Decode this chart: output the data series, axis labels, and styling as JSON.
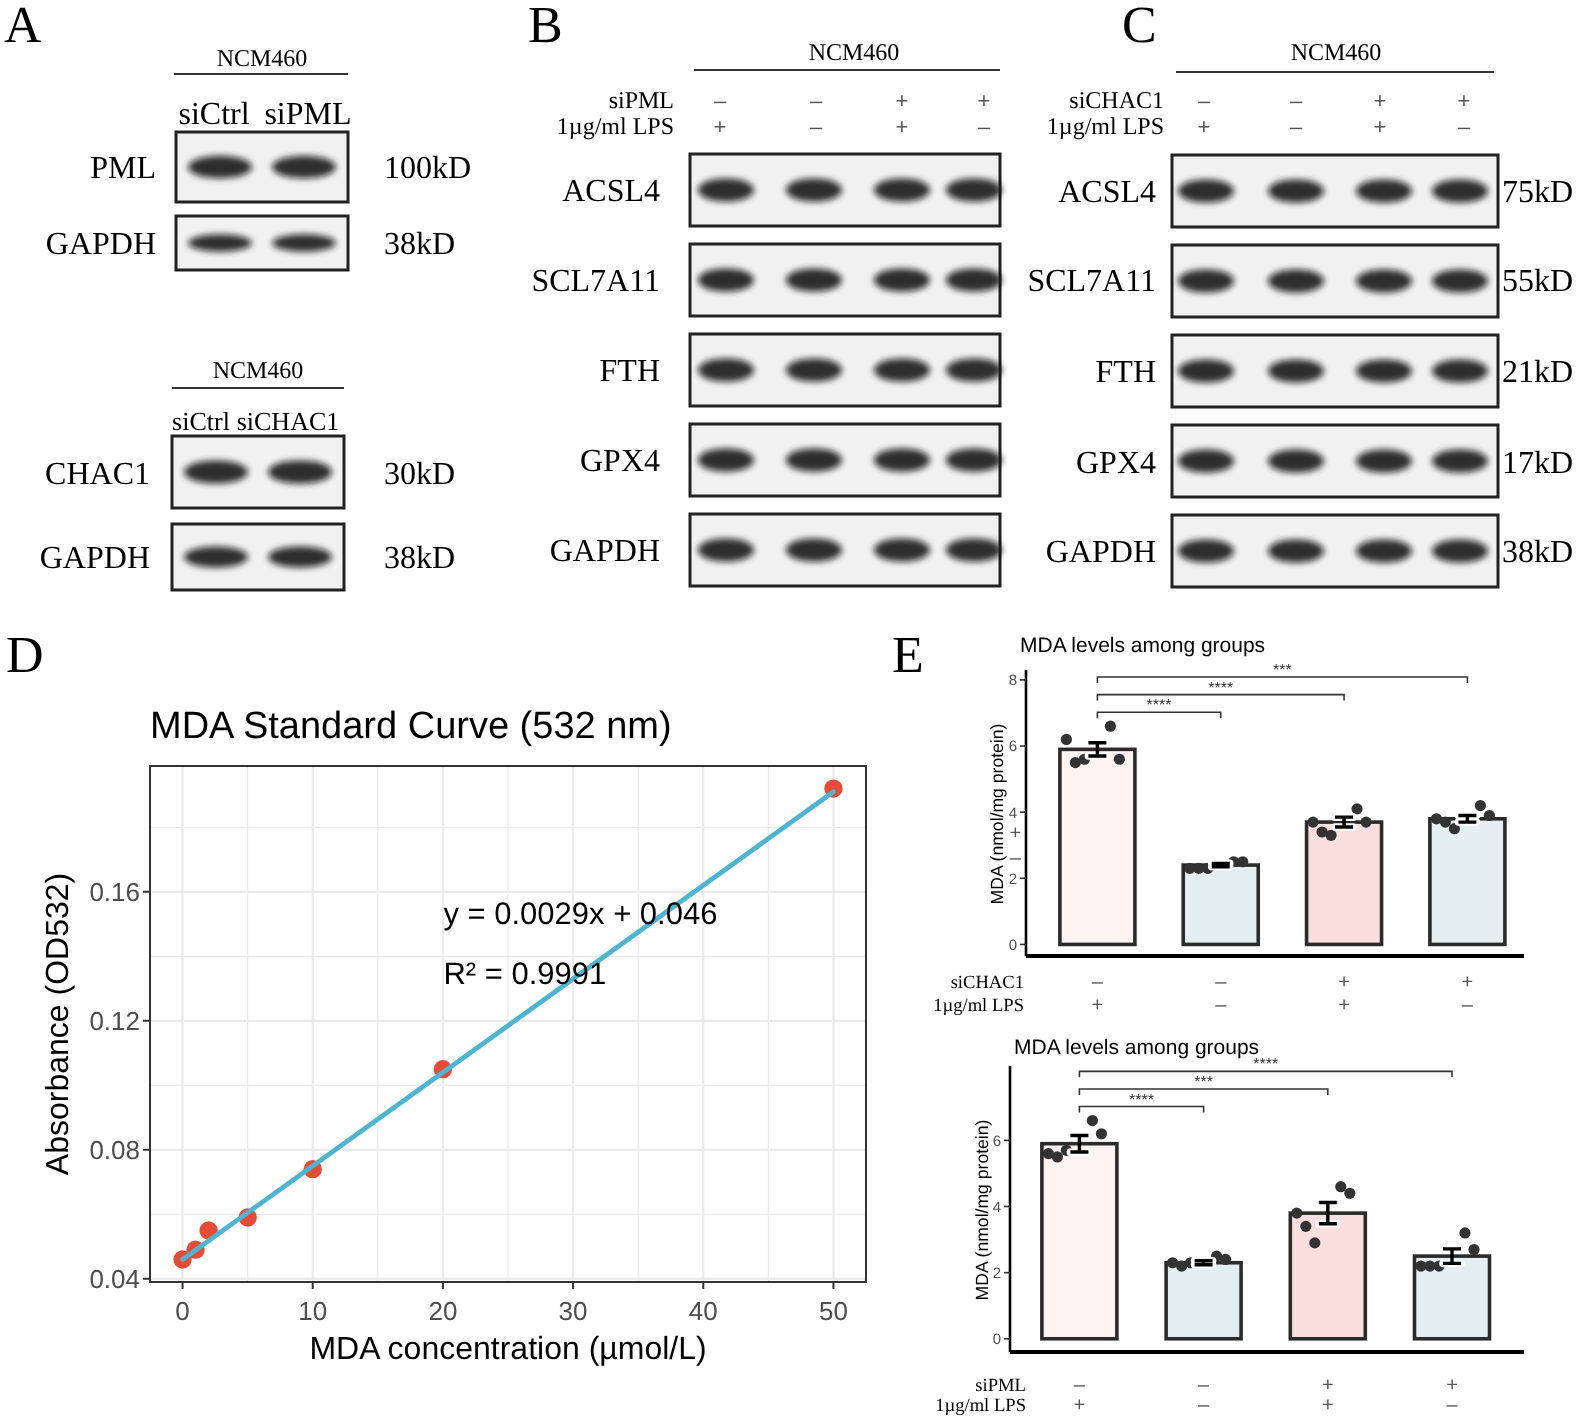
{
  "chart_data": [
    {
      "type": "other",
      "title": "NCM460",
      "annotations": [
        "A",
        "siCtrl",
        "siPML",
        "PML",
        "GAPDH",
        "100kD",
        "38kD"
      ]
    },
    {
      "type": "other",
      "title": "NCM460",
      "annotations": [
        "siCtrl",
        "siCHAC1",
        "CHAC1",
        "GAPDH",
        "30kD",
        "38kD"
      ]
    },
    {
      "type": "other",
      "title": "NCM460",
      "annotations": [
        "B",
        "siPML",
        "1µg/ml LPS",
        "–",
        "–",
        "+",
        "+",
        "+",
        "–",
        "+",
        "–",
        "ACSL4",
        "SCL7A11",
        "FTH",
        "GPX4",
        "GAPDH"
      ]
    },
    {
      "type": "other",
      "title": "NCM460",
      "annotations": [
        "C",
        "siCHAC1",
        "1µg/ml LPS",
        "–",
        "–",
        "+",
        "+",
        "+",
        "–",
        "+",
        "–",
        "ACSL4",
        "SCL7A11",
        "FTH",
        "GPX4",
        "GAPDH",
        "75kD",
        "55kD",
        "21kD",
        "17kD",
        "38kD"
      ]
    },
    {
      "type": "scatter",
      "title": "MDA Standard Curve (532 nm)",
      "xlabel": "MDA concentration (µmol/L)",
      "ylabel": "Absorbance (OD532)",
      "series": [
        {
          "type": "scatter",
          "color": "#e64b35",
          "marker": "circle",
          "x": [
            0,
            1,
            2,
            5,
            10,
            20,
            50
          ],
          "values": [
            0.046,
            0.049,
            0.055,
            0.059,
            0.074,
            0.105,
            0.192
          ]
        },
        {
          "type": "line",
          "color": "#4bb5d2",
          "marker": "none",
          "x": [
            0,
            50
          ],
          "values": [
            0.046,
            0.191
          ]
        }
      ],
      "xlim": [
        -2.5,
        52.5
      ],
      "ylim": [
        0.039,
        0.199
      ],
      "xticks": [
        0,
        {
          "value": 5,
          "label": null
        },
        10,
        {
          "value": 15,
          "label": null
        },
        20,
        {
          "value": 25,
          "label": null
        },
        30,
        {
          "value": 35,
          "label": null
        },
        40,
        {
          "value": 45,
          "label": null
        },
        50
      ],
      "yticks": [
        0.04,
        {
          "value": 0.06,
          "label": null
        },
        0.08,
        {
          "value": 0.1,
          "label": null
        },
        0.12,
        {
          "value": 0.14,
          "label": null
        },
        0.16,
        {
          "value": 0.18,
          "label": null
        }
      ],
      "grid": true,
      "annotations": [
        "D",
        "y = 0.0029x + 0.046",
        "R² = 0.9991"
      ]
    },
    {
      "type": "bar",
      "title": "MDA levels among groups",
      "ylabel": "MDA (nmol/mg protein)",
      "categories": [
        null,
        null,
        null,
        null
      ],
      "series": [
        {
          "type": "bar",
          "colors": [
            "#fdf3f3",
            "#e3eef0",
            "#fbdede",
            "#e5eff1"
          ],
          "values": [
            5.9,
            2.4,
            3.7,
            3.8
          ],
          "errors": [
            0.2,
            0.05,
            0.15,
            0.1
          ]
        },
        {
          "type": "scatter",
          "color": "#333333",
          "values": [
            5.6,
            2.3,
            3.3,
            3.5
          ]
        },
        {
          "type": "scatter",
          "color": "#333333",
          "values": [
            6.6,
            2.5,
            4.1,
            4.2
          ]
        },
        {
          "type": "scatter",
          "color": "#333333",
          "values": [
            5.5,
            2.3,
            3.4,
            3.7
          ]
        },
        {
          "type": "scatter",
          "color": "#333333",
          "values": [
            5.6,
            2.5,
            3.7,
            3.9
          ]
        },
        {
          "type": "scatter",
          "color": "#333333",
          "values": [
            6.2,
            2.3,
            3.7,
            3.8
          ]
        }
      ],
      "ylim": [
        -0.35,
        8.3
      ],
      "yticks": [
        0,
        2,
        4,
        6,
        8
      ],
      "marker": "circle",
      "annotations": [
        "E",
        "****",
        "****",
        "***",
        "siCHAC1",
        "–",
        "–",
        "+",
        "+",
        "1µg/ml LPS",
        "+",
        "–",
        "+",
        "–",
        "+",
        "–"
      ]
    },
    {
      "type": "bar",
      "title": "MDA levels among groups",
      "ylabel": "MDA (nmol/mg protein)",
      "categories": [
        null,
        null,
        null,
        null
      ],
      "series": [
        {
          "type": "bar",
          "colors": [
            "#fdf3f3",
            "#e3eef0",
            "#fbdede",
            "#e5eff1"
          ],
          "values": [
            5.9,
            2.3,
            3.8,
            2.5
          ],
          "errors": [
            0.25,
            0.06,
            0.32,
            0.22
          ]
        },
        {
          "type": "scatter",
          "color": "#333333",
          "values": [
            5.7,
            2.3,
            2.9,
            2.2
          ]
        },
        {
          "type": "scatter",
          "color": "#333333",
          "values": [
            6.6,
            2.5,
            4.6,
            3.2
          ]
        },
        {
          "type": "scatter",
          "color": "#333333",
          "values": [
            5.5,
            2.2,
            3.4,
            2.2
          ]
        },
        {
          "type": "scatter",
          "color": "#333333",
          "values": [
            6.2,
            2.4,
            4.4,
            2.7
          ]
        },
        {
          "type": "scatter",
          "color": "#333333",
          "values": [
            5.6,
            2.3,
            3.8,
            2.2
          ]
        }
      ],
      "ylim": [
        -0.4,
        8.25
      ],
      "yticks": [
        0,
        2,
        4,
        6
      ],
      "marker": "circle",
      "annotations": [
        "****",
        "***",
        "****",
        "siPML",
        "–",
        "–",
        "+",
        "+",
        "1µg/ml LPS",
        "+",
        "–",
        "+",
        "–"
      ]
    }
  ]
}
